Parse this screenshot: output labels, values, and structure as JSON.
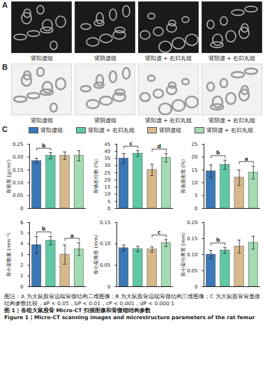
{
  "panels": [
    {
      "letter": "A",
      "images": [
        "肾阳虚组",
        "肾阴虚组",
        "肾阳虚 + 右归丸组",
        "肾阴虚 + 右归丸组"
      ]
    },
    {
      "letter": "B",
      "images": [
        "肾阳虚组",
        "肾阴虚组",
        "肾阳虚 + 右归丸组",
        "肾阴虚 + 右归丸组"
      ]
    }
  ],
  "chart_panel": "C",
  "chart_data": [
    {
      "type": "bar",
      "ylabel": "骨密度 (g/cm³)",
      "categories": [
        "肾阳虚组",
        "肾阳虚 + 右归丸组",
        "肾阴虚组",
        "肾阴虚 + 右归丸组"
      ],
      "colors": [
        "#3a78b8",
        "#5fc9a3",
        "#d7b98c",
        "#a3dcb2"
      ],
      "values": [
        0.185,
        0.205,
        0.205,
        0.205
      ],
      "errors": [
        0.01,
        0.012,
        0.015,
        0.02
      ],
      "ylim": [
        0,
        0.25
      ],
      "yticks": [
        0,
        0.05,
        {
          "value": 0.1,
          "label": "0.10"
        },
        0.15,
        {
          "value": 0.2,
          "label": "0.20"
        },
        0.25
      ],
      "tick_labels": "y",
      "significance": [
        {
          "between": [
            "肾阳虚组",
            "肾阳虚 + 右归丸组"
          ],
          "label": "b"
        }
      ]
    },
    {
      "type": "bar",
      "ylabel": "骨体积分数 (%)",
      "categories": [
        "肾阳虚组",
        "肾阳虚 + 右归丸组",
        "肾阴虚组",
        "肾阴虚 + 右归丸组"
      ],
      "colors": [
        "#3a78b8",
        "#5fc9a3",
        "#d7b98c",
        "#a3dcb2"
      ],
      "values": [
        35,
        38.5,
        27,
        35.5
      ],
      "errors": [
        3.5,
        2,
        4,
        3
      ],
      "ylim": [
        0,
        45
      ],
      "yticks": [
        0,
        5,
        10,
        15,
        20,
        25,
        30,
        35,
        40,
        45
      ],
      "tick_labels": "y",
      "significance": [
        {
          "between": [
            "肾阳虚组",
            "肾阳虚 + 右归丸组"
          ],
          "label": "c"
        },
        {
          "between": [
            "肾阴虚组",
            "肾阴虚 + 右归丸组"
          ],
          "label": "d"
        }
      ]
    },
    {
      "type": "bar",
      "ylabel": "骨表面密度 (%)",
      "categories": [
        "肾阳虚组",
        "肾阳虚 + 右归丸组",
        "肾阴虚组",
        "肾阴虚 + 右归丸组"
      ],
      "colors": [
        "#3a78b8",
        "#5fc9a3",
        "#d7b98c",
        "#a3dcb2"
      ],
      "values": [
        14.5,
        17,
        12,
        14
      ],
      "errors": [
        2.5,
        1.8,
        3,
        2.5
      ],
      "ylim": [
        0,
        25
      ],
      "yticks": [
        0,
        5,
        10,
        15,
        20,
        25
      ],
      "tick_labels": "y",
      "significance": [
        {
          "between": [
            "肾阳虚组",
            "肾阳虚 + 右归丸组"
          ],
          "label": "b"
        },
        {
          "between": [
            "肾阴虚组",
            "肾阴虚 + 右归丸组"
          ],
          "label": "a"
        }
      ]
    },
    {
      "type": "bar",
      "ylabel": "骨小梁数量 (mm⁻¹)",
      "categories": [
        "肾阳虚组",
        "肾阳虚 + 右归丸组",
        "肾阴虚组",
        "肾阴虚 + 右归丸组"
      ],
      "colors": [
        "#3a78b8",
        "#5fc9a3",
        "#d7b98c",
        "#a3dcb2"
      ],
      "values": [
        3.9,
        4.3,
        3.0,
        3.5
      ],
      "errors": [
        0.8,
        0.4,
        0.9,
        0.6
      ],
      "ylim": [
        0,
        6
      ],
      "yticks": [
        0,
        1,
        2,
        3,
        4,
        5,
        6
      ],
      "tick_labels": "y",
      "significance": [
        {
          "between": [
            "肾阳虚组",
            "肾阳虚 + 右归丸组"
          ],
          "label": "b"
        },
        {
          "between": [
            "肾阴虚组",
            "肾阴虚 + 右归丸组"
          ],
          "label": "a"
        }
      ]
    },
    {
      "type": "bar",
      "ylabel": "骨小梁厚度 (mm)",
      "categories": [
        "肾阳虚组",
        "肾阳虚 + 右归丸组",
        "肾阴虚组",
        "肾阴虚 + 右归丸组"
      ],
      "colors": [
        "#3a78b8",
        "#5fc9a3",
        "#d7b98c",
        "#a3dcb2"
      ],
      "values": [
        0.09,
        0.088,
        0.087,
        0.102
      ],
      "errors": [
        0.007,
        0.006,
        0.006,
        0.008
      ],
      "ylim": [
        0,
        0.15
      ],
      "yticks": [
        0,
        0.05,
        {
          "value": 0.1,
          "label": "0.10"
        },
        0.15
      ],
      "tick_labels": "y",
      "significance": [
        {
          "between": [
            "肾阴虚组",
            "肾阴虚 + 右归丸组"
          ],
          "label": "c"
        }
      ]
    },
    {
      "type": "bar",
      "ylabel": "骨小梁分离度 (mm)",
      "categories": [
        "肾阳虚组",
        "肾阳虚 + 右归丸组",
        "肾阴虚组",
        "肾阴虚 + 右归丸组"
      ],
      "colors": [
        "#3a78b8",
        "#5fc9a3",
        "#d7b98c",
        "#a3dcb2"
      ],
      "values": [
        0.1,
        0.113,
        0.125,
        0.137
      ],
      "errors": [
        0.013,
        0.009,
        0.02,
        0.02
      ],
      "ylim": [
        0,
        0.2
      ],
      "yticks": [
        0,
        0.05,
        {
          "value": 0.1,
          "label": "0.10"
        },
        0.15,
        {
          "value": 0.2,
          "label": "0.20"
        }
      ],
      "tick_labels": "y",
      "significance": [
        {
          "between": [
            "肾阳虚组",
            "肾阳虚 + 右归丸组"
          ],
          "label": "b"
        }
      ]
    }
  ],
  "caption": {
    "note": "图注：A 为大鼠股骨远端骨微结构二维图像；B 为大鼠股骨远端骨微结构三维图像；C 为大鼠股骨骨显微结构参数比较，aP < 0.05，bP < 0.01，cP < 0.001，dP < 0.000 1",
    "title_cn": "图 1 | 各组大鼠股骨 Micro-CT 扫描图像和骨微细结构参数",
    "title_en": "Figure 1 | Micro-CT scanning images and microstructure parameters of the rat femur"
  }
}
